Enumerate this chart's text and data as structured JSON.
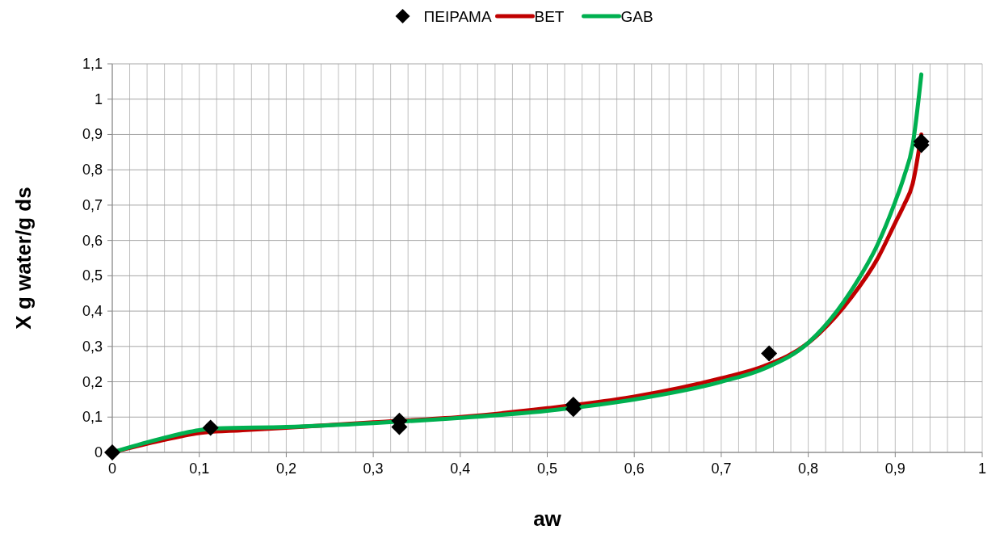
{
  "chart_data": {
    "type": "line",
    "xlabel": "aw",
    "ylabel": "X g water/g ds",
    "legend": "top",
    "grid": true,
    "xlim": [
      0,
      1
    ],
    "ylim": [
      0,
      1.1
    ],
    "xticks": [
      0,
      {
        "value": 0.02,
        "label": null
      },
      {
        "value": 0.04,
        "label": null
      },
      {
        "value": 0.06,
        "label": null
      },
      {
        "value": 0.08,
        "label": null
      },
      {
        "value": 0.1,
        "label": "0,1"
      },
      {
        "value": 0.12,
        "label": null
      },
      {
        "value": 0.14,
        "label": null
      },
      {
        "value": 0.16,
        "label": null
      },
      {
        "value": 0.18,
        "label": null
      },
      {
        "value": 0.2,
        "label": "0,2"
      },
      {
        "value": 0.22,
        "label": null
      },
      {
        "value": 0.24,
        "label": null
      },
      {
        "value": 0.26,
        "label": null
      },
      {
        "value": 0.28,
        "label": null
      },
      {
        "value": 0.3,
        "label": "0,3"
      },
      {
        "value": 0.32,
        "label": null
      },
      {
        "value": 0.34,
        "label": null
      },
      {
        "value": 0.36,
        "label": null
      },
      {
        "value": 0.38,
        "label": null
      },
      {
        "value": 0.4,
        "label": "0,4"
      },
      {
        "value": 0.42,
        "label": null
      },
      {
        "value": 0.44,
        "label": null
      },
      {
        "value": 0.46,
        "label": null
      },
      {
        "value": 0.48,
        "label": null
      },
      {
        "value": 0.5,
        "label": "0,5"
      },
      {
        "value": 0.52,
        "label": null
      },
      {
        "value": 0.54,
        "label": null
      },
      {
        "value": 0.56,
        "label": null
      },
      {
        "value": 0.58,
        "label": null
      },
      {
        "value": 0.6,
        "label": "0,6"
      },
      {
        "value": 0.62,
        "label": null
      },
      {
        "value": 0.64,
        "label": null
      },
      {
        "value": 0.66,
        "label": null
      },
      {
        "value": 0.68,
        "label": null
      },
      {
        "value": 0.7,
        "label": "0,7"
      },
      {
        "value": 0.72,
        "label": null
      },
      {
        "value": 0.74,
        "label": null
      },
      {
        "value": 0.76,
        "label": null
      },
      {
        "value": 0.78,
        "label": null
      },
      {
        "value": 0.8,
        "label": "0,8"
      },
      {
        "value": 0.82,
        "label": null
      },
      {
        "value": 0.84,
        "label": null
      },
      {
        "value": 0.86,
        "label": null
      },
      {
        "value": 0.88,
        "label": null
      },
      {
        "value": 0.9,
        "label": "0,9"
      },
      {
        "value": 0.92,
        "label": null
      },
      {
        "value": 0.94,
        "label": null
      },
      {
        "value": 0.96,
        "label": null
      },
      {
        "value": 0.98,
        "label": null
      },
      1
    ],
    "yticks": [
      0,
      {
        "value": 0.1,
        "label": "0,1"
      },
      {
        "value": 0.2,
        "label": "0,2"
      },
      {
        "value": 0.3,
        "label": "0,3"
      },
      {
        "value": 0.4,
        "label": "0,4"
      },
      {
        "value": 0.5,
        "label": "0,5"
      },
      {
        "value": 0.6,
        "label": "0,6"
      },
      {
        "value": 0.7,
        "label": "0,7"
      },
      {
        "value": 0.8,
        "label": "0,8"
      },
      {
        "value": 0.9,
        "label": "0,9"
      },
      1,
      {
        "value": 1.1,
        "label": "1,1"
      }
    ],
    "series": [
      {
        "name": "ΠΕΙΡΑΜΑ",
        "type": "scatter",
        "marker": "diamond",
        "color": "#000000",
        "x": [
          0,
          0.113,
          0.33,
          0.33,
          0.53,
          0.53,
          0.755,
          0.93,
          0.93
        ],
        "values": [
          0,
          0.07,
          0.09,
          0.072,
          0.135,
          0.123,
          0.28,
          0.88,
          0.87
        ]
      },
      {
        "name": "BET",
        "type": "line",
        "color": "#c00000",
        "x": [
          0,
          0.05,
          0.1,
          0.15,
          0.2,
          0.3,
          0.4,
          0.5,
          0.6,
          0.7,
          0.75,
          0.8,
          0.85,
          0.88,
          0.9,
          0.91,
          0.92,
          0.93
        ],
        "values": [
          0,
          0.03,
          0.055,
          0.063,
          0.07,
          0.085,
          0.1,
          0.125,
          0.158,
          0.21,
          0.245,
          0.31,
          0.44,
          0.55,
          0.65,
          0.7,
          0.76,
          0.9
        ]
      },
      {
        "name": "GAB",
        "type": "line",
        "color": "#00b050",
        "x": [
          0,
          0.05,
          0.1,
          0.12,
          0.2,
          0.3,
          0.4,
          0.5,
          0.6,
          0.7,
          0.75,
          0.8,
          0.85,
          0.88,
          0.9,
          0.91,
          0.92,
          0.93
        ],
        "values": [
          0,
          0.035,
          0.063,
          0.068,
          0.072,
          0.083,
          0.098,
          0.118,
          0.15,
          0.2,
          0.238,
          0.31,
          0.46,
          0.59,
          0.71,
          0.78,
          0.87,
          1.07
        ]
      }
    ]
  }
}
